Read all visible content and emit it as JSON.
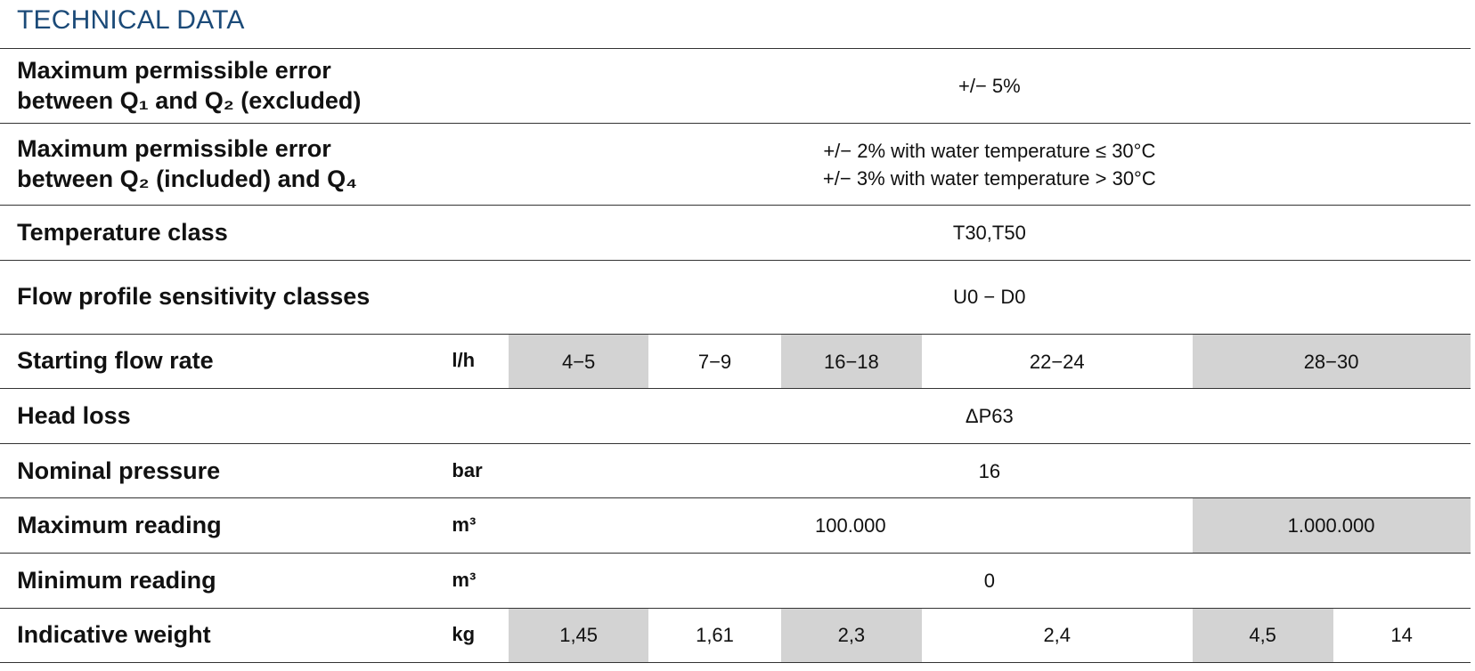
{
  "title": "TECHNICAL DATA",
  "rows": [
    {
      "label": [
        "Maximum permissible error",
        "between Q₁ and Q₂ (excluded)"
      ],
      "cells": [
        [
          "+/− 5%"
        ]
      ]
    },
    {
      "label": [
        "Maximum permissible error",
        "between Q₂ (included) and Q₄"
      ],
      "cells": [
        [
          "+/− 2% with water temperature ≤ 30°C",
          "+/− 3% with water temperature > 30°C"
        ]
      ]
    },
    {
      "label": [
        "Temperature class"
      ],
      "cells": [
        [
          "T30,T50"
        ]
      ]
    },
    {
      "label": [
        "Flow profile sensitivity classes"
      ],
      "cells": [
        [
          "U0 − D0"
        ]
      ]
    },
    {
      "label": [
        "Starting flow rate"
      ],
      "unit": "l/h",
      "cells": [
        [
          "4−5"
        ],
        [
          "7−9"
        ],
        [
          "16−18"
        ],
        [
          "22−24"
        ],
        [
          "28−30"
        ]
      ]
    },
    {
      "label": [
        "Head loss"
      ],
      "cells": [
        [
          "ΔP63"
        ]
      ]
    },
    {
      "label": [
        "Nominal pressure"
      ],
      "unit": "bar",
      "cells": [
        [
          "16"
        ]
      ]
    },
    {
      "label": [
        "Maximum reading"
      ],
      "unit": "m³",
      "cells": [
        [
          "100.000"
        ],
        [
          "1.000.000"
        ]
      ]
    },
    {
      "label": [
        "Minimum reading"
      ],
      "unit": "m³",
      "cells": [
        [
          "0"
        ]
      ]
    },
    {
      "label": [
        "Indicative weight"
      ],
      "unit": "kg",
      "cells": [
        [
          "1,45"
        ],
        [
          "1,61"
        ],
        [
          "2,3"
        ],
        [
          "2,4"
        ],
        [
          "4,5"
        ],
        [
          "14"
        ]
      ]
    }
  ]
}
